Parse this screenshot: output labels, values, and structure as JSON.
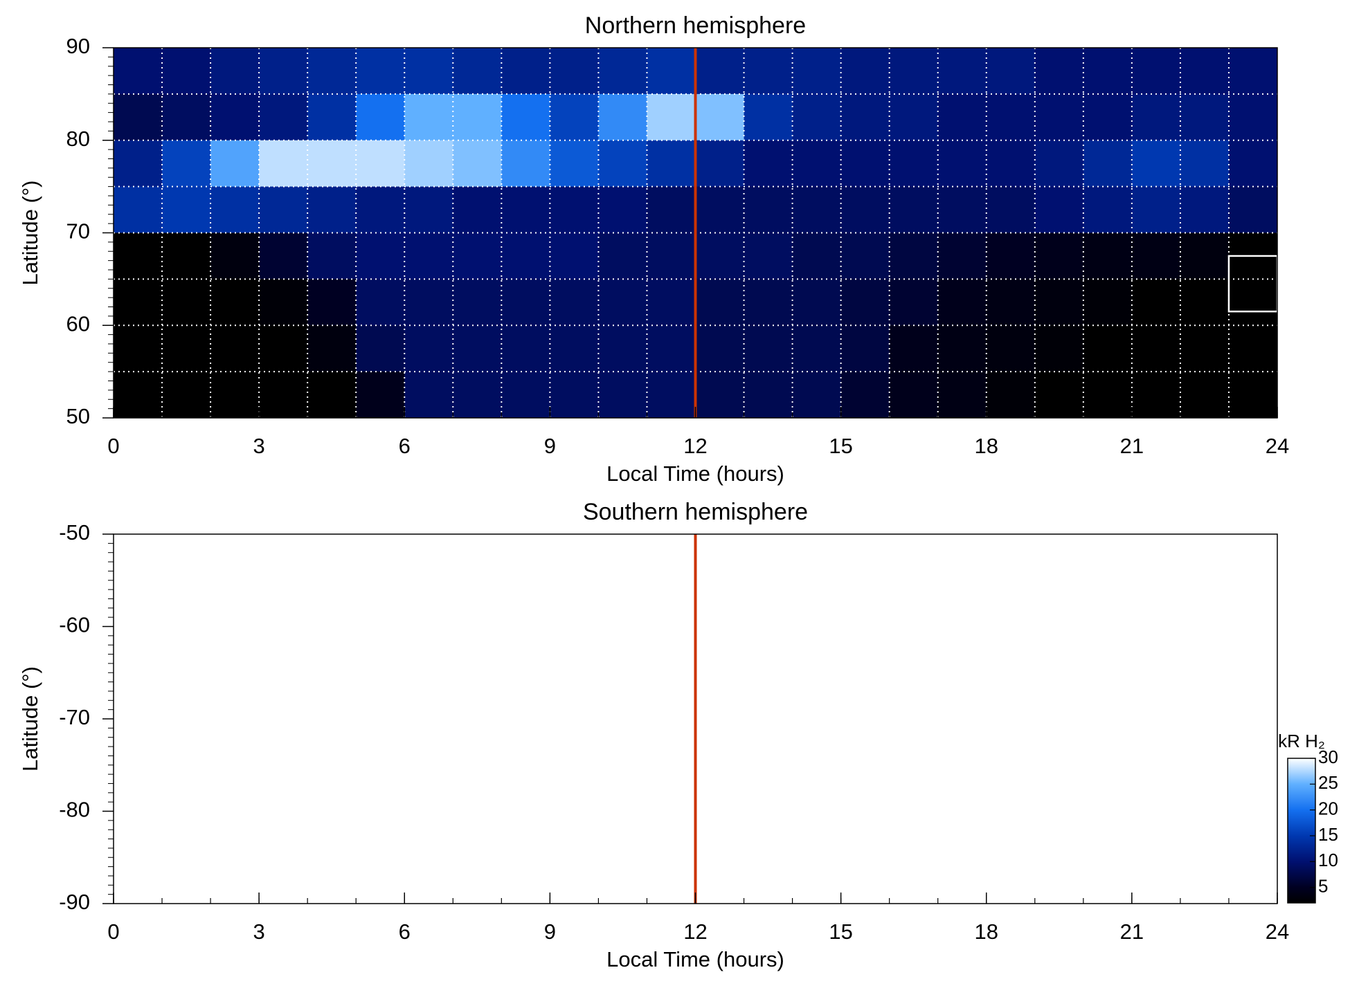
{
  "chart_data": [
    {
      "type": "heatmap",
      "title": "Northern hemisphere",
      "x_label": "Local Time (hours)",
      "y_label": "Latitude (°)",
      "xlim": [
        0,
        24
      ],
      "xticks": [
        0,
        3,
        6,
        9,
        12,
        15,
        18,
        21,
        24
      ],
      "xminorticks": [
        0,
        1,
        2,
        3,
        4,
        5,
        6,
        7,
        8,
        9,
        10,
        11,
        12,
        13,
        14,
        15,
        16,
        17,
        18,
        19,
        20,
        21,
        22,
        23,
        24
      ],
      "ylim": [
        50,
        90
      ],
      "yticks": [
        50,
        60,
        70,
        80,
        90
      ],
      "yminorticks": [
        50,
        51,
        52,
        53,
        54,
        55,
        56,
        57,
        58,
        59,
        60,
        61,
        62,
        63,
        64,
        65,
        66,
        67,
        68,
        69,
        70,
        71,
        72,
        73,
        74,
        75,
        76,
        77,
        78,
        79,
        80,
        81,
        82,
        83,
        84,
        85,
        86,
        87,
        88,
        89,
        90
      ],
      "grid": true,
      "xgrid": [
        1,
        2,
        3,
        4,
        5,
        6,
        7,
        8,
        9,
        10,
        11,
        12,
        13,
        14,
        15,
        16,
        17,
        18,
        19,
        20,
        21,
        22,
        23
      ],
      "ygrid": [
        55,
        60,
        65,
        70,
        75,
        80,
        85
      ],
      "xbins": [
        0,
        1,
        2,
        3,
        4,
        5,
        6,
        7,
        8,
        9,
        10,
        11,
        12,
        13,
        14,
        15,
        16,
        17,
        18,
        19,
        20,
        21,
        22,
        23,
        24
      ],
      "ybins": [
        90,
        85,
        80,
        75,
        70,
        65,
        60,
        55,
        50
      ],
      "z": [
        [
          10,
          10,
          11,
          12,
          13,
          14,
          14,
          13,
          12,
          12,
          13,
          14,
          12,
          12,
          12,
          11,
          11,
          11,
          11,
          10,
          10,
          10,
          10,
          10
        ],
        [
          8,
          9,
          10,
          11,
          14,
          20,
          25,
          25,
          20,
          16,
          22,
          27,
          26,
          14,
          12,
          11,
          11,
          10,
          10,
          10,
          10,
          11,
          11,
          10
        ],
        [
          12,
          16,
          24,
          28,
          28,
          28,
          27,
          26,
          22,
          18,
          16,
          14,
          12,
          10,
          10,
          10,
          10,
          10,
          10,
          11,
          13,
          15,
          14,
          10
        ],
        [
          14,
          15,
          14,
          13,
          12,
          11,
          11,
          10,
          10,
          10,
          10,
          9,
          9,
          9,
          9,
          9,
          9,
          9,
          9,
          10,
          11,
          12,
          11,
          9
        ],
        [
          0,
          0,
          2,
          6,
          9,
          10,
          10,
          10,
          10,
          10,
          9,
          9,
          9,
          9,
          8,
          8,
          7,
          6,
          5,
          4,
          3,
          3,
          2,
          0
        ],
        [
          0,
          0,
          0,
          1,
          5,
          9,
          9,
          9,
          9,
          9,
          9,
          9,
          8,
          8,
          8,
          7,
          6,
          4,
          3,
          2,
          1,
          0,
          0,
          0
        ],
        [
          0,
          0,
          0,
          0,
          2,
          8,
          9,
          9,
          9,
          9,
          9,
          9,
          8,
          8,
          8,
          7,
          4,
          3,
          2,
          1,
          0,
          0,
          0,
          0
        ],
        [
          0,
          0,
          0,
          0,
          0,
          4,
          9,
          9,
          9,
          9,
          9,
          9,
          8,
          8,
          8,
          6,
          4,
          3,
          1,
          0,
          0,
          0,
          0,
          0
        ]
      ],
      "vline": {
        "x": 12,
        "color": "#cc3300"
      },
      "box": {
        "x": [
          23,
          24
        ],
        "y": [
          61.5,
          67.5
        ],
        "color": "#ffffff"
      },
      "colorscale": [
        [
          0,
          "#000000"
        ],
        [
          5,
          "#000022"
        ],
        [
          10,
          "#001070"
        ],
        [
          15,
          "#0038b0"
        ],
        [
          20,
          "#1470f0"
        ],
        [
          25,
          "#60b0ff"
        ],
        [
          30,
          "#ffffff"
        ]
      ]
    },
    {
      "type": "heatmap",
      "title": "Southern hemisphere",
      "x_label": "Local Time (hours)",
      "y_label": "Latitude (°)",
      "xlim": [
        0,
        24
      ],
      "xticks": [
        0,
        3,
        6,
        9,
        12,
        15,
        18,
        21,
        24
      ],
      "xminorticks": [
        0,
        1,
        2,
        3,
        4,
        5,
        6,
        7,
        8,
        9,
        10,
        11,
        12,
        13,
        14,
        15,
        16,
        17,
        18,
        19,
        20,
        21,
        22,
        23,
        24
      ],
      "ylim": [
        -90,
        -50
      ],
      "yticks": [
        -90,
        -80,
        -70,
        -60,
        -50
      ],
      "yminorticks": [
        -90,
        -89,
        -88,
        -87,
        -86,
        -85,
        -84,
        -83,
        -82,
        -81,
        -80,
        -79,
        -78,
        -77,
        -76,
        -75,
        -74,
        -73,
        -72,
        -71,
        -70,
        -69,
        -68,
        -67,
        -66,
        -65,
        -64,
        -63,
        -62,
        -61,
        -60,
        -59,
        -58,
        -57,
        -56,
        -55,
        -54,
        -53,
        -52,
        -51,
        -50
      ],
      "vline": {
        "x": 12,
        "color": "#cc3300"
      },
      "colorbar": {
        "label": "kR H₂",
        "lim": [
          2,
          30
        ],
        "ticks": [
          5,
          10,
          15,
          20,
          25,
          30
        ],
        "colorscale": [
          [
            0,
            "#000000"
          ],
          [
            5,
            "#000022"
          ],
          [
            10,
            "#001070"
          ],
          [
            15,
            "#0038b0"
          ],
          [
            20,
            "#1470f0"
          ],
          [
            25,
            "#60b0ff"
          ],
          [
            30,
            "#ffffff"
          ]
        ]
      }
    }
  ]
}
